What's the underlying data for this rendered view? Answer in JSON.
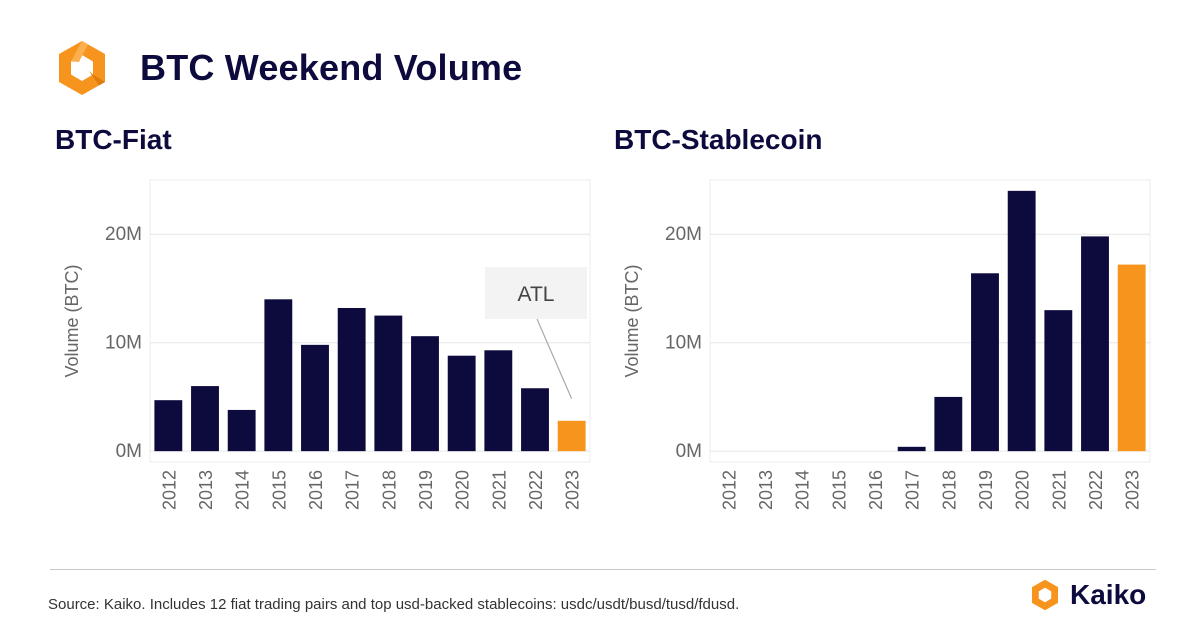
{
  "header": {
    "title": "BTC Weekend Volume",
    "logo_icon": "kaiko-logo-icon"
  },
  "colors": {
    "navy": "#0d0b3d",
    "orange": "#f7941d",
    "grid": "#e6e6e6",
    "axis_text": "#666666"
  },
  "chart_data": [
    {
      "type": "bar",
      "title": "BTC-Fiat",
      "xlabel": "",
      "ylabel": "Volume (BTC)",
      "ylim": [
        -1000000,
        25000000
      ],
      "yticks": [
        0,
        10000000,
        20000000
      ],
      "ytick_labels": [
        "0M",
        "10M",
        "20M"
      ],
      "categories": [
        "2012",
        "2013",
        "2014",
        "2015",
        "2016",
        "2017",
        "2018",
        "2019",
        "2020",
        "2021",
        "2022",
        "2023"
      ],
      "values": [
        4700000,
        6000000,
        3800000,
        14000000,
        9800000,
        13200000,
        12500000,
        10600000,
        8800000,
        9300000,
        5800000,
        2800000
      ],
      "highlight_index": 11,
      "annotation": {
        "text": "ATL",
        "target": "2023"
      }
    },
    {
      "type": "bar",
      "title": "BTC-Stablecoin",
      "xlabel": "",
      "ylabel": "Volume (BTC)",
      "ylim": [
        -1000000,
        25000000
      ],
      "yticks": [
        0,
        10000000,
        20000000
      ],
      "ytick_labels": [
        "0M",
        "10M",
        "20M"
      ],
      "categories": [
        "2012",
        "2013",
        "2014",
        "2015",
        "2016",
        "2017",
        "2018",
        "2019",
        "2020",
        "2021",
        "2022",
        "2023"
      ],
      "values": [
        0,
        0,
        0,
        0,
        0,
        400000,
        5000000,
        16400000,
        24000000,
        13000000,
        19800000,
        17200000
      ],
      "highlight_index": 11
    }
  ],
  "footer": {
    "source": "Source: Kaiko. Includes 12 fiat trading pairs and top usd-backed stablecoins: usdc/usdt/busd/tusd/fdusd.",
    "brand": "Kaiko"
  }
}
